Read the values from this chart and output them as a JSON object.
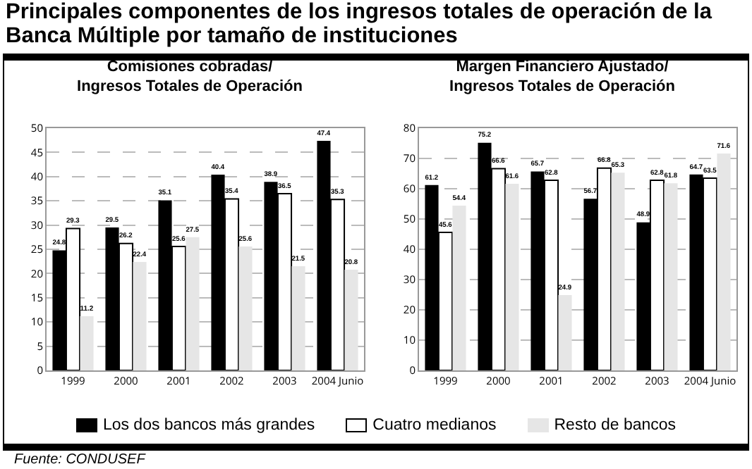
{
  "chart_data": [
    {
      "type": "bar",
      "title": "Principales componentes de los ingresos totales de operación de la Banca Múltiple por tamaño de instituciones",
      "subtitle": "Comisiones cobradas/\nIngresos Totales de Operación",
      "categories": [
        "1999",
        "2000",
        "2001",
        "2002",
        "2003",
        "2004 Junio"
      ],
      "series": [
        {
          "name": "Los dos bancos más grandes",
          "color": "#000000",
          "values": [
            24.8,
            29.5,
            35.1,
            40.4,
            38.9,
            47.4
          ]
        },
        {
          "name": "Cuatro medianos",
          "color": "#ffffff",
          "values": [
            29.3,
            26.2,
            25.6,
            35.4,
            36.5,
            35.3
          ]
        },
        {
          "name": "Resto de bancos",
          "color": "#e6e6e6",
          "values": [
            11.2,
            22.4,
            27.5,
            25.6,
            21.5,
            20.8
          ]
        }
      ],
      "ylim": [
        0,
        50
      ],
      "yticks": [
        0,
        5,
        10,
        15,
        20,
        25,
        30,
        35,
        40,
        45,
        50
      ],
      "grid": "y",
      "data_labels": true,
      "legend": "bottom",
      "annotations": [
        "Fuente: CONDUSEF"
      ]
    },
    {
      "type": "bar",
      "subtitle": "Margen Financiero Ajustado/\nIngresos Totales de Operación",
      "categories": [
        "1999",
        "2000",
        "2001",
        "2002",
        "2003",
        "2004 Junio"
      ],
      "series": [
        {
          "color": "#000000",
          "values": [
            61.2,
            75.2,
            65.7,
            56.7,
            48.9,
            64.7
          ]
        },
        {
          "color": "#ffffff",
          "values": [
            45.6,
            66.6,
            62.8,
            66.8,
            62.8,
            63.5
          ]
        },
        {
          "color": "#e6e6e6",
          "values": [
            54.4,
            61.6,
            24.9,
            65.3,
            61.8,
            71.6
          ]
        }
      ],
      "ylim": [
        0,
        80
      ],
      "yticks": [
        0,
        10,
        20,
        30,
        40,
        50,
        60,
        70,
        80
      ],
      "grid": "y",
      "data_labels": true
    }
  ]
}
